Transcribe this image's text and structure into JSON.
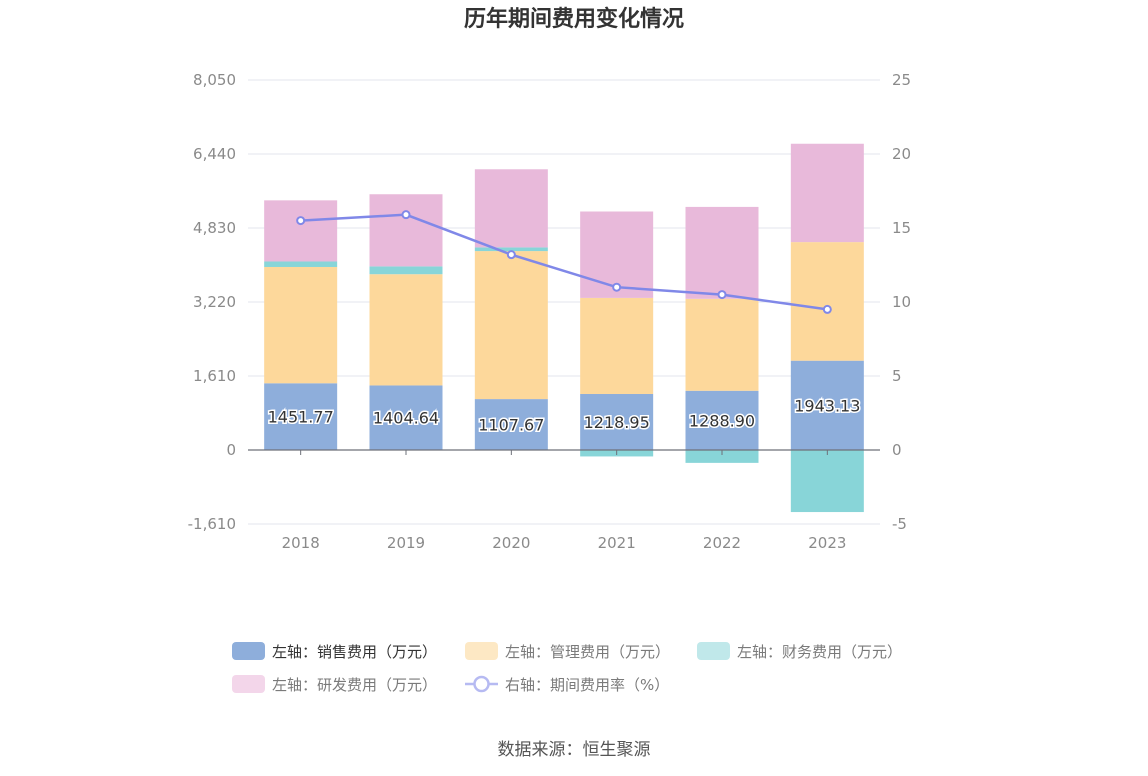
{
  "chart_data": {
    "type": "bar",
    "title": "历年期间费用变化情况",
    "source": "数据来源：恒生聚源",
    "categories": [
      "2018",
      "2019",
      "2020",
      "2021",
      "2022",
      "2023"
    ],
    "left_axis": {
      "min": -1610,
      "max": 8050,
      "ticks": [
        "-1,610",
        "0",
        "1,610",
        "3,220",
        "4,830",
        "6,440",
        "8,050"
      ],
      "tick_values": [
        -1610,
        0,
        1610,
        3220,
        4830,
        6440,
        8050
      ]
    },
    "right_axis": {
      "min": -5,
      "max": 25,
      "ticks": [
        "-5",
        "0",
        "5",
        "10",
        "15",
        "20",
        "25"
      ],
      "tick_values": [
        -5,
        0,
        5,
        10,
        15,
        20,
        25
      ]
    },
    "grid": true,
    "legend_position": "bottom",
    "series": [
      {
        "name": "左轴：销售费用（万元）",
        "type": "bar",
        "axis": "left",
        "color": "#8eaedb",
        "values": [
          1451.77,
          1404.64,
          1107.67,
          1218.95,
          1288.9,
          1943.13
        ],
        "labels": [
          "1451.77",
          "1404.64",
          "1107.67",
          "1218.95",
          "1288.90",
          "1943.13"
        ]
      },
      {
        "name": "左轴：管理费用（万元）",
        "type": "bar",
        "axis": "left",
        "color": "#fdd89b",
        "values": [
          2530,
          2420,
          3220,
          2090,
          2000,
          2580
        ]
      },
      {
        "name": "左轴：财务费用（万元）",
        "type": "bar",
        "axis": "left",
        "color": "#88d5d8",
        "values": [
          120,
          170,
          80,
          -140,
          -280,
          -1350
        ]
      },
      {
        "name": "左轴：研发费用（万元）",
        "type": "bar",
        "axis": "left",
        "color": "#e8b9da",
        "values": [
          1330,
          1570,
          1700,
          1880,
          2000,
          2140
        ]
      },
      {
        "name": "右轴：期间费用率（%）",
        "type": "line",
        "axis": "right",
        "color": "#8088e8",
        "values": [
          15.5,
          15.9,
          13.2,
          11.0,
          10.5,
          9.5
        ]
      }
    ]
  }
}
